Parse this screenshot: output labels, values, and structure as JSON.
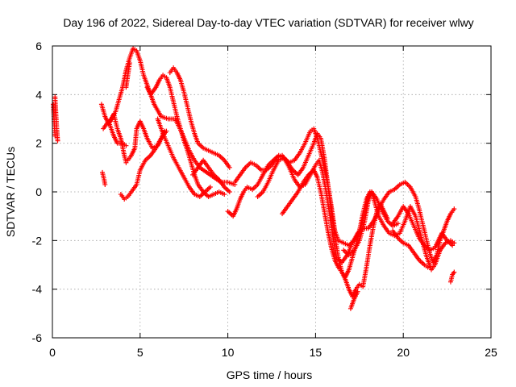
{
  "chart_data": {
    "type": "scatter",
    "title": "Day 196 of 2022, Sidereal Day-to-day VTEC variation (SDTVAR) for receiver wlwy",
    "xlabel": "GPS time / hours",
    "ylabel": "SDTVAR / TECUs",
    "xlim": [
      0,
      25
    ],
    "ylim": [
      -6,
      6
    ],
    "xticks": [
      0,
      5,
      10,
      15,
      20,
      25
    ],
    "yticks": [
      -6,
      -4,
      -2,
      0,
      2,
      4,
      6
    ],
    "grid": true,
    "marker": "+",
    "color": "#ff0000",
    "tracks": [
      [
        [
          0.15,
          3.9
        ],
        [
          0.2,
          3.2
        ],
        [
          0.25,
          2.6
        ],
        [
          0.3,
          2.1
        ]
      ],
      [
        [
          0.05,
          3.6
        ],
        [
          0.1,
          2.9
        ],
        [
          0.15,
          2.3
        ]
      ],
      [
        [
          2.85,
          0.8
        ],
        [
          2.95,
          0.5
        ],
        [
          3.0,
          0.3
        ]
      ],
      [
        [
          2.8,
          3.6
        ],
        [
          3.0,
          3.1
        ],
        [
          3.2,
          2.8
        ],
        [
          3.5,
          3.2
        ],
        [
          3.7,
          2.6
        ],
        [
          3.9,
          2.2
        ],
        [
          4.1,
          1.5
        ],
        [
          4.2,
          1.2
        ]
      ],
      [
        [
          2.9,
          2.6
        ],
        [
          3.2,
          2.9
        ],
        [
          3.5,
          2.3
        ],
        [
          3.7,
          2.0
        ],
        [
          4.0,
          2.0
        ],
        [
          4.2,
          1.9
        ]
      ],
      [
        [
          3.3,
          2.9
        ],
        [
          3.6,
          3.3
        ],
        [
          3.8,
          3.8
        ],
        [
          4.0,
          4.3
        ],
        [
          4.2,
          5.0
        ],
        [
          4.4,
          5.5
        ],
        [
          4.6,
          5.9
        ],
        [
          4.8,
          5.8
        ],
        [
          5.0,
          5.4
        ],
        [
          5.2,
          4.8
        ],
        [
          5.5,
          4.2
        ],
        [
          5.8,
          3.6
        ],
        [
          6.2,
          3.1
        ],
        [
          6.6,
          3.0
        ],
        [
          7.0,
          3.0
        ],
        [
          7.4,
          2.4
        ],
        [
          7.8,
          1.7
        ],
        [
          8.1,
          1.3
        ],
        [
          8.4,
          1.0
        ],
        [
          8.8,
          0.8
        ],
        [
          9.2,
          0.6
        ],
        [
          9.6,
          0.4
        ],
        [
          10.0,
          0.4
        ],
        [
          10.4,
          0.3
        ]
      ],
      [
        [
          4.2,
          4.3
        ],
        [
          4.3,
          4.8
        ],
        [
          4.4,
          5.3
        ]
      ],
      [
        [
          4.3,
          1.3
        ],
        [
          4.5,
          1.5
        ],
        [
          4.7,
          1.8
        ],
        [
          4.8,
          2.6
        ],
        [
          5.0,
          2.9
        ],
        [
          5.2,
          2.6
        ],
        [
          5.4,
          2.2
        ],
        [
          5.7,
          1.8
        ],
        [
          6.0,
          1.9
        ],
        [
          6.2,
          2.2
        ],
        [
          6.5,
          2.5
        ]
      ],
      [
        [
          3.9,
          -0.1
        ],
        [
          4.1,
          -0.3
        ],
        [
          4.3,
          -0.2
        ],
        [
          4.5,
          0.0
        ],
        [
          4.8,
          0.3
        ],
        [
          5.0,
          0.9
        ],
        [
          5.3,
          1.3
        ],
        [
          5.6,
          1.5
        ],
        [
          5.9,
          1.8
        ],
        [
          6.2,
          2.2
        ],
        [
          6.4,
          2.5
        ]
      ],
      [
        [
          5.4,
          4.3
        ],
        [
          5.6,
          4.0
        ],
        [
          5.9,
          4.3
        ],
        [
          6.1,
          4.6
        ],
        [
          6.3,
          4.8
        ],
        [
          6.5,
          4.7
        ],
        [
          6.7,
          4.3
        ],
        [
          6.9,
          3.7
        ],
        [
          7.1,
          3.1
        ],
        [
          7.3,
          2.6
        ],
        [
          7.5,
          2.1
        ],
        [
          7.7,
          1.7
        ],
        [
          7.9,
          1.2
        ],
        [
          8.1,
          0.7
        ],
        [
          8.3,
          0.3
        ],
        [
          8.6,
          0.0
        ],
        [
          8.9,
          -0.2
        ],
        [
          9.2,
          -0.1
        ],
        [
          9.5,
          0.0
        ],
        [
          9.8,
          -0.1
        ]
      ],
      [
        [
          6.7,
          4.9
        ],
        [
          6.9,
          5.1
        ],
        [
          7.1,
          4.9
        ],
        [
          7.3,
          4.6
        ],
        [
          7.5,
          4.1
        ],
        [
          7.7,
          3.5
        ],
        [
          7.9,
          2.9
        ],
        [
          8.1,
          2.4
        ],
        [
          8.3,
          2.0
        ],
        [
          8.6,
          1.8
        ],
        [
          8.9,
          1.7
        ],
        [
          9.2,
          1.6
        ],
        [
          9.5,
          1.5
        ],
        [
          9.8,
          1.3
        ],
        [
          10.1,
          1.0
        ]
      ],
      [
        [
          6.0,
          3.0
        ],
        [
          6.3,
          2.4
        ],
        [
          6.6,
          1.9
        ],
        [
          6.9,
          1.4
        ],
        [
          7.2,
          1.0
        ],
        [
          7.5,
          0.6
        ],
        [
          7.8,
          0.2
        ],
        [
          8.1,
          -0.1
        ],
        [
          8.4,
          -0.2
        ],
        [
          8.7,
          0.0
        ],
        [
          9.0,
          0.2
        ]
      ],
      [
        [
          8.0,
          0.7
        ],
        [
          8.3,
          1.0
        ],
        [
          8.6,
          1.3
        ],
        [
          8.9,
          1.0
        ],
        [
          9.2,
          0.7
        ],
        [
          9.5,
          0.5
        ],
        [
          9.8,
          0.2
        ],
        [
          10.1,
          0.0
        ]
      ],
      [
        [
          10.0,
          -0.8
        ],
        [
          10.3,
          -1.0
        ],
        [
          10.5,
          -0.7
        ],
        [
          10.7,
          -0.3
        ],
        [
          10.9,
          0.0
        ],
        [
          11.1,
          0.2
        ],
        [
          11.4,
          0.1
        ],
        [
          11.7,
          0.3
        ],
        [
          12.0,
          0.7
        ],
        [
          12.3,
          1.1
        ],
        [
          12.6,
          1.3
        ],
        [
          12.9,
          1.5
        ],
        [
          13.2,
          1.4
        ],
        [
          13.5,
          1.2
        ],
        [
          13.8,
          1.3
        ],
        [
          14.1,
          1.6
        ],
        [
          14.4,
          2.0
        ],
        [
          14.7,
          2.5
        ],
        [
          14.9,
          2.6
        ],
        [
          15.1,
          2.2
        ],
        [
          15.3,
          1.6
        ],
        [
          15.5,
          1.0
        ],
        [
          15.7,
          0.3
        ],
        [
          15.9,
          -0.6
        ],
        [
          16.1,
          -1.6
        ],
        [
          16.3,
          -2.0
        ],
        [
          16.6,
          -2.1
        ],
        [
          16.9,
          -2.2
        ],
        [
          17.2,
          -2.0
        ],
        [
          17.5,
          -1.6
        ],
        [
          17.8,
          -0.9
        ],
        [
          18.0,
          -0.2
        ],
        [
          18.2,
          0.0
        ],
        [
          18.5,
          -0.3
        ],
        [
          18.8,
          -0.8
        ],
        [
          19.1,
          -1.2
        ],
        [
          19.4,
          -1.4
        ],
        [
          19.7,
          -1.3
        ]
      ],
      [
        [
          10.4,
          0.4
        ],
        [
          10.7,
          0.7
        ],
        [
          11.0,
          1.0
        ],
        [
          11.3,
          1.2
        ],
        [
          11.6,
          1.1
        ],
        [
          11.9,
          0.9
        ],
        [
          12.2,
          0.9
        ],
        [
          12.5,
          1.1
        ],
        [
          12.8,
          1.4
        ],
        [
          13.1,
          1.5
        ],
        [
          13.4,
          1.2
        ],
        [
          13.7,
          0.9
        ],
        [
          14.0,
          0.7
        ],
        [
          14.3,
          1.0
        ],
        [
          14.6,
          1.5
        ],
        [
          14.9,
          2.0
        ],
        [
          15.1,
          2.4
        ],
        [
          15.3,
          2.2
        ],
        [
          15.5,
          1.4
        ],
        [
          15.7,
          0.3
        ],
        [
          15.9,
          -0.8
        ],
        [
          16.1,
          -1.8
        ],
        [
          16.3,
          -2.7
        ],
        [
          16.5,
          -3.3
        ],
        [
          16.7,
          -3.5
        ],
        [
          16.9,
          -3.2
        ],
        [
          17.1,
          -2.7
        ],
        [
          17.3,
          -2.2
        ],
        [
          17.5,
          -1.6
        ],
        [
          17.7,
          -0.9
        ],
        [
          17.9,
          -0.3
        ],
        [
          18.1,
          0.0
        ]
      ],
      [
        [
          11.7,
          -0.2
        ],
        [
          12.0,
          0.0
        ],
        [
          12.3,
          0.4
        ],
        [
          12.6,
          0.9
        ],
        [
          12.9,
          1.3
        ],
        [
          13.2,
          1.4
        ],
        [
          13.5,
          1.0
        ],
        [
          13.8,
          0.5
        ],
        [
          14.1,
          0.2
        ],
        [
          14.4,
          0.3
        ],
        [
          14.7,
          0.7
        ],
        [
          15.0,
          1.1
        ],
        [
          15.2,
          1.3
        ],
        [
          15.4,
          0.8
        ],
        [
          15.6,
          0.0
        ],
        [
          15.8,
          -0.9
        ],
        [
          16.0,
          -1.9
        ],
        [
          16.2,
          -2.7
        ],
        [
          16.5,
          -2.9
        ],
        [
          16.8,
          -2.6
        ],
        [
          17.1,
          -2.1
        ],
        [
          17.4,
          -1.7
        ],
        [
          17.7,
          -1.5
        ],
        [
          18.0,
          -1.5
        ],
        [
          18.3,
          -1.2
        ],
        [
          18.6,
          -0.8
        ]
      ],
      [
        [
          13.1,
          -0.9
        ],
        [
          13.4,
          -0.6
        ],
        [
          13.7,
          -0.3
        ],
        [
          14.0,
          0.0
        ],
        [
          14.3,
          0.4
        ],
        [
          14.6,
          0.7
        ],
        [
          14.9,
          0.9
        ],
        [
          15.1,
          0.6
        ],
        [
          15.3,
          0.0
        ],
        [
          15.5,
          -0.8
        ],
        [
          15.7,
          -1.6
        ],
        [
          15.9,
          -2.3
        ],
        [
          16.1,
          -2.8
        ],
        [
          16.3,
          -3.1
        ],
        [
          16.5,
          -3.3
        ],
        [
          16.7,
          -3.6
        ],
        [
          16.9,
          -4.0
        ],
        [
          17.1,
          -4.3
        ],
        [
          17.3,
          -4.0
        ],
        [
          17.5,
          -3.8
        ],
        [
          17.7,
          -3.9
        ],
        [
          17.9,
          -3.1
        ],
        [
          18.1,
          -2.2
        ],
        [
          18.3,
          -1.4
        ],
        [
          18.5,
          -0.8
        ],
        [
          18.7,
          -0.5
        ],
        [
          18.9,
          -0.8
        ],
        [
          19.1,
          -1.1
        ]
      ],
      [
        [
          17.0,
          -4.8
        ],
        [
          17.2,
          -4.4
        ],
        [
          17.4,
          -4.1
        ]
      ],
      [
        [
          16.6,
          -2.4
        ],
        [
          16.9,
          -2.6
        ],
        [
          17.2,
          -2.4
        ],
        [
          17.5,
          -2.0
        ],
        [
          17.8,
          -1.2
        ],
        [
          18.0,
          -0.4
        ],
        [
          18.2,
          0.0
        ],
        [
          18.4,
          -0.5
        ],
        [
          18.6,
          -1.0
        ],
        [
          18.9,
          -1.4
        ],
        [
          19.2,
          -1.7
        ],
        [
          19.5,
          -1.8
        ],
        [
          19.8,
          -1.7
        ],
        [
          20.1,
          -1.2
        ],
        [
          20.4,
          -0.6
        ],
        [
          20.7,
          -1.0
        ],
        [
          21.0,
          -1.8
        ],
        [
          21.3,
          -2.6
        ],
        [
          21.6,
          -3.2
        ],
        [
          21.8,
          -3.0
        ],
        [
          22.1,
          -2.4
        ],
        [
          22.4,
          -2.1
        ],
        [
          22.7,
          -2.0
        ],
        [
          22.9,
          -2.1
        ]
      ],
      [
        [
          18.6,
          -0.7
        ],
        [
          18.9,
          -0.3
        ],
        [
          19.2,
          0.0
        ],
        [
          19.5,
          0.1
        ],
        [
          19.8,
          0.3
        ],
        [
          20.1,
          0.4
        ],
        [
          20.4,
          0.2
        ],
        [
          20.7,
          -0.2
        ],
        [
          20.9,
          -0.7
        ],
        [
          21.1,
          -1.3
        ],
        [
          21.3,
          -1.9
        ],
        [
          21.5,
          -2.5
        ],
        [
          21.7,
          -2.9
        ],
        [
          21.9,
          -2.6
        ],
        [
          22.1,
          -2.0
        ],
        [
          22.3,
          -1.6
        ],
        [
          22.5,
          -1.2
        ],
        [
          22.7,
          -0.9
        ],
        [
          22.9,
          -0.7
        ]
      ],
      [
        [
          19.4,
          -1.3
        ],
        [
          19.7,
          -1.0
        ],
        [
          20.0,
          -0.6
        ],
        [
          20.3,
          -0.9
        ],
        [
          20.6,
          -1.4
        ],
        [
          20.9,
          -1.9
        ],
        [
          21.2,
          -2.2
        ],
        [
          21.5,
          -2.4
        ],
        [
          21.8,
          -2.3
        ],
        [
          22.0,
          -2.0
        ],
        [
          22.2,
          -1.7
        ],
        [
          22.5,
          -2.0
        ],
        [
          22.8,
          -2.2
        ]
      ],
      [
        [
          19.4,
          -1.6
        ],
        [
          19.7,
          -1.9
        ],
        [
          20.0,
          -2.1
        ],
        [
          20.3,
          -2.2
        ],
        [
          20.6,
          -2.5
        ],
        [
          20.9,
          -2.8
        ],
        [
          21.2,
          -3.0
        ],
        [
          21.4,
          -3.1
        ]
      ],
      [
        [
          22.7,
          -3.7
        ],
        [
          22.8,
          -3.4
        ],
        [
          22.9,
          -3.3
        ]
      ]
    ]
  }
}
